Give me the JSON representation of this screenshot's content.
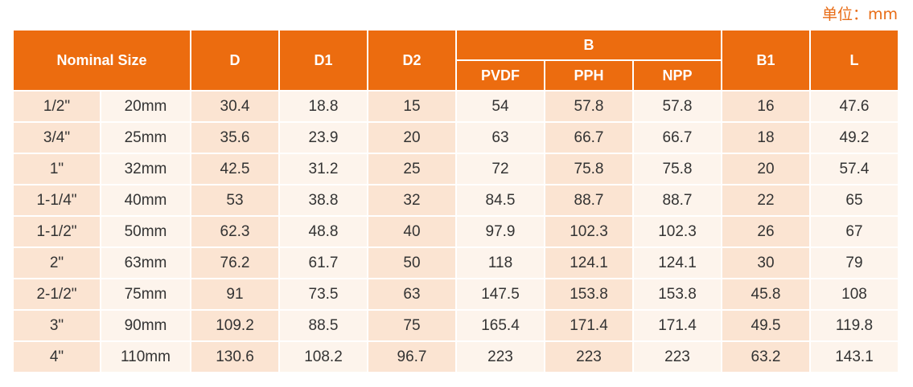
{
  "unit_label": "单位：mm",
  "header": {
    "nominal_size": "Nominal Size",
    "d": "D",
    "d1": "D1",
    "d2": "D2",
    "b": "B",
    "b_sub": [
      "PVDF",
      "PPH",
      "NPP"
    ],
    "b1": "B1",
    "l": "L"
  },
  "rows": [
    {
      "inch": "1/2\"",
      "mm": "20mm",
      "d": "30.4",
      "d1": "18.8",
      "d2": "15",
      "pvdf": "54",
      "pph": "57.8",
      "npp": "57.8",
      "b1": "16",
      "l": "47.6"
    },
    {
      "inch": "3/4\"",
      "mm": "25mm",
      "d": "35.6",
      "d1": "23.9",
      "d2": "20",
      "pvdf": "63",
      "pph": "66.7",
      "npp": "66.7",
      "b1": "18",
      "l": "49.2"
    },
    {
      "inch": "1\"",
      "mm": "32mm",
      "d": "42.5",
      "d1": "31.2",
      "d2": "25",
      "pvdf": "72",
      "pph": "75.8",
      "npp": "75.8",
      "b1": "20",
      "l": "57.4"
    },
    {
      "inch": "1-1/4\"",
      "mm": "40mm",
      "d": "53",
      "d1": "38.8",
      "d2": "32",
      "pvdf": "84.5",
      "pph": "88.7",
      "npp": "88.7",
      "b1": "22",
      "l": "65"
    },
    {
      "inch": "1-1/2\"",
      "mm": "50mm",
      "d": "62.3",
      "d1": "48.8",
      "d2": "40",
      "pvdf": "97.9",
      "pph": "102.3",
      "npp": "102.3",
      "b1": "26",
      "l": "67"
    },
    {
      "inch": "2\"",
      "mm": "63mm",
      "d": "76.2",
      "d1": "61.7",
      "d2": "50",
      "pvdf": "118",
      "pph": "124.1",
      "npp": "124.1",
      "b1": "30",
      "l": "79"
    },
    {
      "inch": "2-1/2\"",
      "mm": "75mm",
      "d": "91",
      "d1": "73.5",
      "d2": "63",
      "pvdf": "147.5",
      "pph": "153.8",
      "npp": "153.8",
      "b1": "45.8",
      "l": "108"
    },
    {
      "inch": "3\"",
      "mm": "90mm",
      "d": "109.2",
      "d1": "88.5",
      "d2": "75",
      "pvdf": "165.4",
      "pph": "171.4",
      "npp": "171.4",
      "b1": "49.5",
      "l": "119.8"
    },
    {
      "inch": "4\"",
      "mm": "110mm",
      "d": "130.6",
      "d1": "108.2",
      "d2": "96.7",
      "pvdf": "223",
      "pph": "223",
      "npp": "223",
      "b1": "63.2",
      "l": "143.1"
    }
  ],
  "colors": {
    "header_bg": "#ec6c0f",
    "header_text": "#ffffff",
    "cell_dark": "#fbe4d2",
    "cell_light": "#fdf4ec",
    "unit_text": "#e86c16"
  }
}
